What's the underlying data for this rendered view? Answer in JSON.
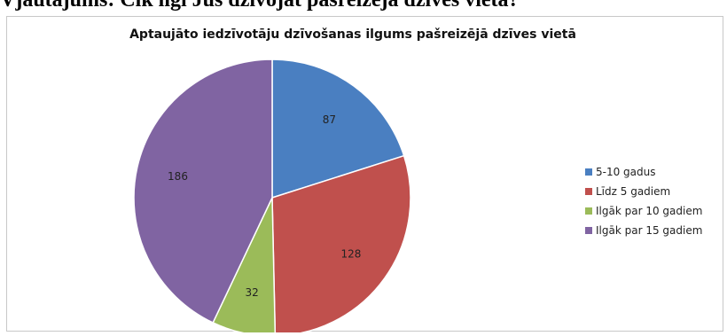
{
  "document": {
    "heading": "Vjautājums: Cik ilgi Jūs dzīvojat pašreizējā dzīves vietā?"
  },
  "chart_data": {
    "type": "pie",
    "title": "Aptaujāto iedzīvotāju dzīvošanas ilgums pašreizējā dzīves vietā",
    "categories": [
      "5-10 gadus",
      "Līdz 5 gadiem",
      "Ilgāk par 10 gadiem",
      "Ilgāk par 15 gadiem"
    ],
    "values": [
      87,
      128,
      32,
      186
    ],
    "colors": [
      "#4a7fc1",
      "#c0504d",
      "#9bbb59",
      "#8064a2"
    ],
    "data_labels": true,
    "legend_position": "right"
  }
}
